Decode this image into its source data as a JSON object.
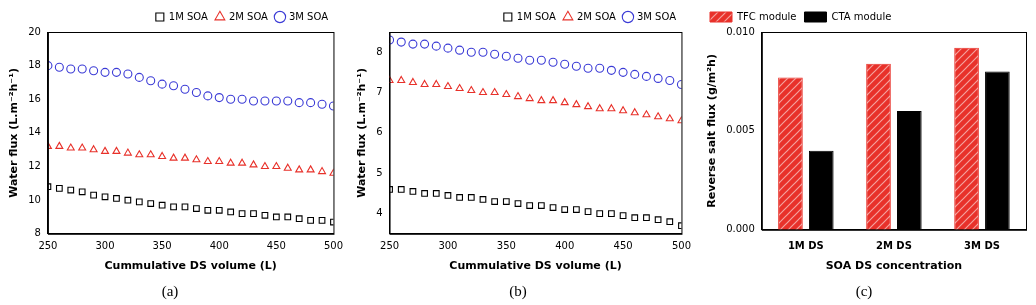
{
  "chart_data": [
    {
      "type": "scatter",
      "title": "(a)",
      "x_label": "Cummulative DS volume (L)",
      "y_label": "Water flux (L.m⁻²h⁻¹)",
      "x": [
        250,
        260,
        270,
        280,
        290,
        300,
        310,
        320,
        330,
        340,
        350,
        360,
        370,
        380,
        390,
        400,
        410,
        420,
        430,
        440,
        450,
        460,
        470,
        480,
        490,
        500
      ],
      "series": [
        {
          "name": "1M SOA",
          "color": "#000000",
          "marker": "square",
          "values": [
            10.8,
            10.7,
            10.6,
            10.5,
            10.3,
            10.2,
            10.1,
            10.0,
            9.9,
            9.8,
            9.7,
            9.6,
            9.6,
            9.5,
            9.4,
            9.4,
            9.3,
            9.2,
            9.2,
            9.1,
            9.0,
            9.0,
            8.9,
            8.8,
            8.8,
            8.7
          ]
        },
        {
          "name": "2M SOA",
          "color": "#e8312a",
          "marker": "triangle",
          "values": [
            13.2,
            13.2,
            13.1,
            13.1,
            13.0,
            12.9,
            12.9,
            12.8,
            12.7,
            12.7,
            12.6,
            12.5,
            12.5,
            12.4,
            12.3,
            12.3,
            12.2,
            12.2,
            12.1,
            12.0,
            12.0,
            11.9,
            11.8,
            11.8,
            11.7,
            11.6
          ]
        },
        {
          "name": "3M SOA",
          "color": "#3b3bd6",
          "marker": "circle",
          "values": [
            18.0,
            17.9,
            17.8,
            17.8,
            17.7,
            17.6,
            17.6,
            17.5,
            17.3,
            17.1,
            16.9,
            16.8,
            16.6,
            16.4,
            16.2,
            16.1,
            16.0,
            16.0,
            15.9,
            15.9,
            15.9,
            15.9,
            15.8,
            15.8,
            15.7,
            15.6
          ]
        }
      ],
      "xlim": [
        250,
        500
      ],
      "xticks": [
        250,
        300,
        350,
        400,
        450,
        500
      ],
      "ylim": [
        8,
        20
      ],
      "yticks": [
        8,
        10,
        12,
        14,
        16,
        18,
        20
      ],
      "grid": false,
      "legend": "upper right"
    },
    {
      "type": "scatter",
      "title": "(b)",
      "x_label": "Cummulative DS volume (L)",
      "y_label": "Water flux (L.m⁻²h⁻¹)",
      "x": [
        250,
        260,
        270,
        280,
        290,
        300,
        310,
        320,
        330,
        340,
        350,
        360,
        370,
        380,
        390,
        400,
        410,
        420,
        430,
        440,
        450,
        460,
        470,
        480,
        490,
        500
      ],
      "series": [
        {
          "name": "1M SOA",
          "color": "#000000",
          "marker": "square",
          "values": [
            4.6,
            4.6,
            4.55,
            4.5,
            4.5,
            4.45,
            4.4,
            4.4,
            4.35,
            4.3,
            4.3,
            4.25,
            4.2,
            4.2,
            4.15,
            4.1,
            4.1,
            4.05,
            4.0,
            4.0,
            3.95,
            3.9,
            3.9,
            3.85,
            3.8,
            3.7
          ]
        },
        {
          "name": "2M SOA",
          "color": "#e8312a",
          "marker": "triangle",
          "values": [
            7.3,
            7.3,
            7.25,
            7.2,
            7.2,
            7.15,
            7.1,
            7.05,
            7.0,
            7.0,
            6.95,
            6.9,
            6.85,
            6.8,
            6.8,
            6.75,
            6.7,
            6.65,
            6.6,
            6.6,
            6.55,
            6.5,
            6.45,
            6.4,
            6.35,
            6.3
          ]
        },
        {
          "name": "3M SOA",
          "color": "#3b3bd6",
          "marker": "circle",
          "values": [
            8.3,
            8.25,
            8.2,
            8.2,
            8.15,
            8.1,
            8.05,
            8.0,
            8.0,
            7.95,
            7.9,
            7.85,
            7.8,
            7.8,
            7.75,
            7.7,
            7.65,
            7.6,
            7.6,
            7.55,
            7.5,
            7.45,
            7.4,
            7.35,
            7.3,
            7.2
          ]
        }
      ],
      "xlim": [
        250,
        500
      ],
      "xticks": [
        250,
        300,
        350,
        400,
        450,
        500
      ],
      "ylim": [
        3.5,
        8.5
      ],
      "yticks": [
        4,
        5,
        6,
        7,
        8
      ],
      "grid": false,
      "legend": "upper right"
    },
    {
      "type": "bar",
      "title": "(c)",
      "x_label": "SOA DS concentration",
      "y_label": "Reverse salt flux (g/m²h)",
      "categories": [
        "1M DS",
        "2M DS",
        "3M DS"
      ],
      "series": [
        {
          "name": "TFC module",
          "color": "#e8312a",
          "values": [
            0.0077,
            0.0084,
            0.0092
          ]
        },
        {
          "name": "CTA module",
          "color": "#000000",
          "values": [
            0.004,
            0.006,
            0.008
          ]
        }
      ],
      "ylim": [
        0,
        0.01
      ],
      "yticks": [
        {
          "value": 0,
          "label": "0.000"
        },
        {
          "value": 0.005,
          "label": "0.005"
        },
        {
          "value": 0.01,
          "label": "0.010"
        }
      ],
      "grid": false,
      "legend": "upper left"
    }
  ]
}
